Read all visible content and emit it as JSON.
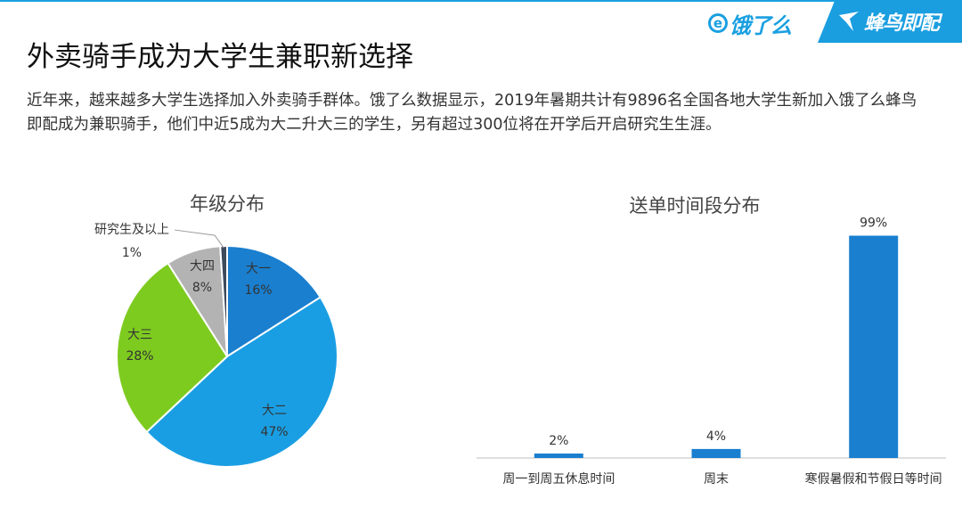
{
  "header": {
    "brand_eleme": "饿了么",
    "brand_fengniao": "蜂鸟即配",
    "title": "外卖骑手成为大学生兼职新选择",
    "description": "近年来，越来越多大学生选择加入外卖骑手群体。饿了么数据显示，2019年暑期共计有9896名全国各地大学生新加入饿了么蜂鸟即配成为兼职骑手，他们中近5成为大二升大三的学生，另有超过300位将在开学后开启研究生生涯。"
  },
  "colors": {
    "accent": "#1aa0e0"
  },
  "chart_data": [
    {
      "type": "pie",
      "title": "年级分布",
      "slices": [
        {
          "label": "大一",
          "value": 16,
          "value_label": "16%",
          "color": "#1a7fcf"
        },
        {
          "label": "大二",
          "value": 47,
          "value_label": "47%",
          "color": "#1a9ee3"
        },
        {
          "label": "大三",
          "value": 28,
          "value_label": "28%",
          "color": "#7ecb20"
        },
        {
          "label": "大四",
          "value": 8,
          "value_label": "8%",
          "color": "#b3b3b3"
        },
        {
          "label": "研究生及以上",
          "value": 1,
          "value_label": "1%",
          "color": "#3d4a5c"
        }
      ]
    },
    {
      "type": "bar",
      "title": "送单时间段分布",
      "categories": [
        "周一到周五休息时间",
        "周末",
        "寒假暑假和节假日等时间"
      ],
      "values": [
        2,
        4,
        99
      ],
      "value_labels": [
        "2%",
        "4%",
        "99%"
      ],
      "color": "#1a7fcf",
      "ylim": [
        0,
        100
      ],
      "grid": false
    }
  ]
}
